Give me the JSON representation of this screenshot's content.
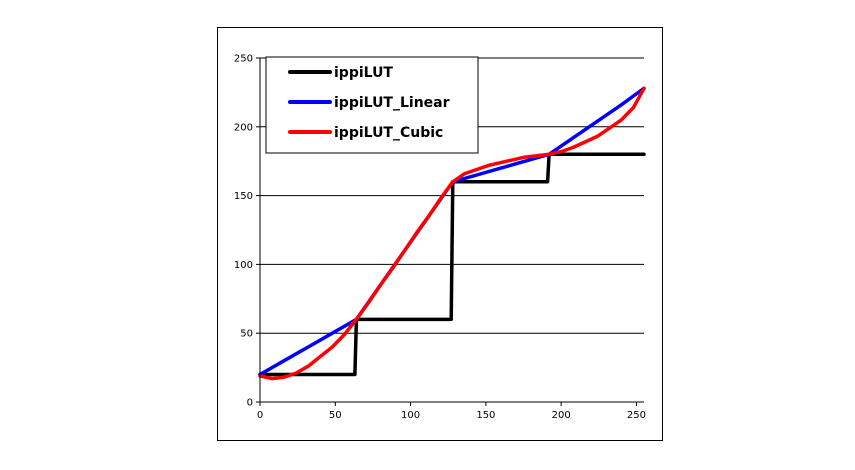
{
  "chart_data": {
    "type": "line",
    "title": "",
    "xlabel": "",
    "ylabel": "",
    "xlim": [
      0,
      255
    ],
    "ylim": [
      0,
      250
    ],
    "x_ticks": [
      0,
      50,
      100,
      150,
      200,
      250
    ],
    "y_ticks": [
      0,
      50,
      100,
      150,
      200,
      250
    ],
    "x_tick_labels": [
      "0",
      "50",
      "100",
      "150",
      "200",
      "250"
    ],
    "y_tick_labels": [
      "0",
      "50",
      "100",
      "150",
      "200",
      "250"
    ],
    "grid": "horizontal",
    "legend_position": "top-left",
    "series": [
      {
        "name": "ippiLUT",
        "color": "#000000",
        "points": [
          [
            0,
            20
          ],
          [
            63,
            20
          ],
          [
            64,
            60
          ],
          [
            127,
            60
          ],
          [
            128,
            160
          ],
          [
            191,
            160
          ],
          [
            192,
            180
          ],
          [
            255,
            180
          ]
        ]
      },
      {
        "name": "ippiLUT_Linear",
        "color": "#0000ff",
        "points": [
          [
            0,
            20
          ],
          [
            16,
            30
          ],
          [
            32,
            40
          ],
          [
            48,
            50
          ],
          [
            64,
            60
          ],
          [
            80,
            85
          ],
          [
            96,
            110
          ],
          [
            112,
            135
          ],
          [
            128,
            160
          ],
          [
            144,
            165
          ],
          [
            160,
            170
          ],
          [
            176,
            175
          ],
          [
            192,
            180
          ],
          [
            208,
            192
          ],
          [
            224,
            204
          ],
          [
            240,
            216
          ],
          [
            255,
            228
          ]
        ]
      },
      {
        "name": "ippiLUT_Cubic",
        "color": "#ff0000",
        "points": [
          [
            0,
            19
          ],
          [
            8,
            17
          ],
          [
            16,
            18
          ],
          [
            24,
            21
          ],
          [
            32,
            26
          ],
          [
            40,
            33
          ],
          [
            48,
            40
          ],
          [
            56,
            49
          ],
          [
            64,
            60
          ],
          [
            72,
            72
          ],
          [
            80,
            85
          ],
          [
            88,
            97
          ],
          [
            96,
            110
          ],
          [
            104,
            123
          ],
          [
            112,
            135
          ],
          [
            120,
            148
          ],
          [
            128,
            160
          ],
          [
            136,
            166
          ],
          [
            144,
            169
          ],
          [
            152,
            172
          ],
          [
            160,
            174
          ],
          [
            168,
            176
          ],
          [
            176,
            178
          ],
          [
            184,
            179
          ],
          [
            192,
            180
          ],
          [
            200,
            182
          ],
          [
            208,
            185
          ],
          [
            216,
            189
          ],
          [
            224,
            193
          ],
          [
            232,
            199
          ],
          [
            240,
            205
          ],
          [
            248,
            214
          ],
          [
            255,
            228
          ]
        ]
      }
    ]
  }
}
